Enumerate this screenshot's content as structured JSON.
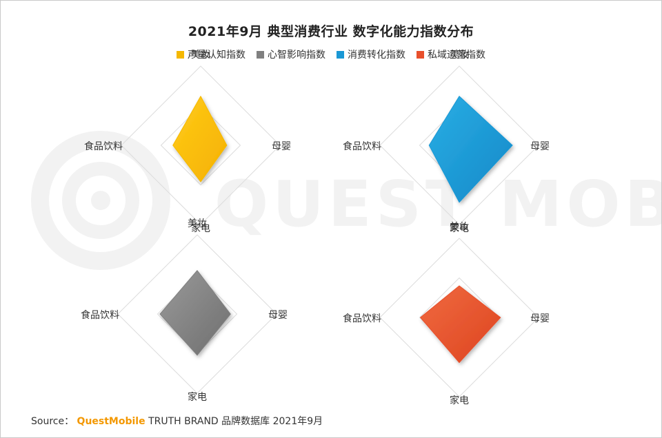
{
  "title": "2021年9月 典型消费行业 数字化能力指数分布",
  "watermark": "QUEST MOBILE",
  "legend": [
    {
      "label": "声量认知指数",
      "color": "#f5b800"
    },
    {
      "label": "心智影响指数",
      "color": "#808080"
    },
    {
      "label": "消费转化指数",
      "color": "#1a98d5"
    },
    {
      "label": "私域运营指数",
      "color": "#e8502c"
    }
  ],
  "source": {
    "prefix": "Source：",
    "brand": "QuestMobile",
    "suffix": "TRUTH BRAND 品牌数据库 2021年9月"
  },
  "chart_data": [
    {
      "type": "radar",
      "series_name": "声量认知指数",
      "color": "#f5b800",
      "axes": [
        "美妆",
        "母婴",
        "家电",
        "食品饮料"
      ],
      "values": [
        0.62,
        0.33,
        0.46,
        0.35
      ],
      "range": [
        0,
        1
      ]
    },
    {
      "type": "radar",
      "series_name": "消费转化指数",
      "color": "#1a98d5",
      "axes": [
        "美妆",
        "母婴",
        "家电",
        "食品饮料"
      ],
      "values": [
        0.62,
        0.67,
        0.72,
        0.38
      ],
      "range": [
        0,
        1
      ]
    },
    {
      "type": "radar",
      "series_name": "心智影响指数",
      "color": "#808080",
      "axes": [
        "美妆",
        "母婴",
        "家电",
        "食品饮料"
      ],
      "values": [
        0.55,
        0.42,
        0.52,
        0.47
      ],
      "range": [
        0,
        1
      ]
    },
    {
      "type": "radar",
      "series_name": "私域运营指数",
      "color": "#e8502c",
      "axes": [
        "美妆",
        "母婴",
        "家电",
        "食品饮料"
      ],
      "values": [
        0.4,
        0.52,
        0.57,
        0.49
      ],
      "range": [
        0,
        1
      ]
    }
  ]
}
